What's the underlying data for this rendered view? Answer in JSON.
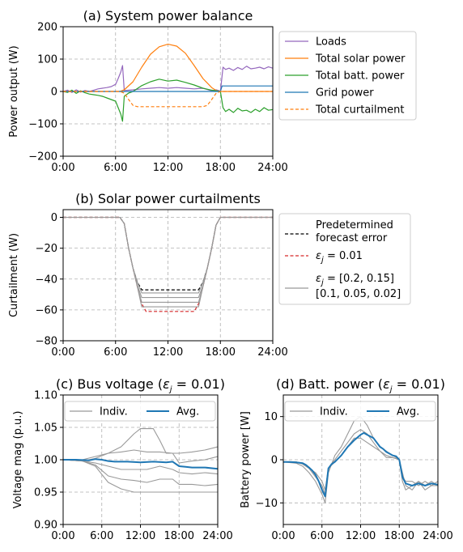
{
  "chart_data": [
    {
      "type": "line",
      "title": "(a) System power balance",
      "xlabel": "",
      "ylabel": "Power output (W)",
      "xlim": [
        0,
        24
      ],
      "ylim": [
        -200,
        200
      ],
      "xticks": [
        "0:00",
        "6:00",
        "12:00",
        "18:00",
        "24:00"
      ],
      "yticks": [
        "200",
        "100",
        "0",
        "−100",
        "−200"
      ],
      "grid": true,
      "legend": "outside-right",
      "series": [
        {
          "name": "Loads",
          "color": "#9467bd",
          "dashed": false,
          "x": [
            0,
            0.5,
            1,
            1.5,
            2,
            2.5,
            3,
            3.5,
            4,
            4.5,
            5,
            5.5,
            6,
            6.3,
            6.6,
            6.8,
            7,
            8,
            9,
            10,
            11,
            12,
            13,
            14,
            15,
            16,
            17,
            17.5,
            17.8,
            18,
            18.3,
            18.6,
            19,
            19.5,
            20,
            20.5,
            21,
            21.5,
            22,
            22.5,
            23,
            23.5,
            24
          ],
          "y": [
            0,
            4,
            -3,
            5,
            -2,
            3,
            0,
            4,
            8,
            10,
            12,
            15,
            22,
            40,
            60,
            80,
            3,
            5,
            8,
            10,
            12,
            10,
            12,
            10,
            8,
            10,
            2,
            5,
            3,
            0,
            75,
            68,
            72,
            65,
            74,
            68,
            78,
            70,
            72,
            75,
            70,
            76,
            72
          ]
        },
        {
          "name": "Total solar power",
          "color": "#ff7f0e",
          "dashed": false,
          "x": [
            0,
            6,
            6.5,
            7,
            8,
            9,
            10,
            11,
            12,
            13,
            14,
            15,
            16,
            17,
            17.5,
            18,
            24
          ],
          "y": [
            0,
            0,
            0,
            5,
            30,
            75,
            115,
            138,
            146,
            140,
            118,
            80,
            40,
            12,
            3,
            0,
            0
          ]
        },
        {
          "name": "Total batt. power",
          "color": "#2ca02c",
          "dashed": false,
          "x": [
            0,
            0.5,
            1,
            1.5,
            2,
            2.5,
            3,
            3.5,
            4,
            4.5,
            5,
            5.5,
            6,
            6.3,
            6.6,
            6.8,
            7,
            7.5,
            8,
            9,
            10,
            11,
            12,
            13,
            14,
            15,
            16,
            17,
            17.5,
            18,
            18.3,
            18.6,
            19,
            19.5,
            20,
            20.5,
            21,
            21.5,
            22,
            22.5,
            23,
            23.5,
            24
          ],
          "y": [
            0,
            -3,
            4,
            -6,
            2,
            -4,
            -8,
            -10,
            -12,
            -15,
            -20,
            -25,
            -30,
            -50,
            -70,
            -92,
            -15,
            -5,
            0,
            18,
            30,
            38,
            32,
            35,
            28,
            20,
            10,
            4,
            2,
            0,
            -50,
            -62,
            -55,
            -65,
            -52,
            -60,
            -58,
            -65,
            -55,
            -62,
            -50,
            -58,
            -56
          ]
        },
        {
          "name": "Grid power",
          "color": "#1f77b4",
          "dashed": false,
          "x": [
            0,
            18,
            18.2,
            24
          ],
          "y": [
            0,
            0,
            17,
            17
          ]
        },
        {
          "name": "Total curtailment",
          "color": "#ff7f0e",
          "dashed": true,
          "x": [
            0,
            6.5,
            7,
            7.5,
            8,
            8.5,
            16,
            16.5,
            17,
            17.5,
            18,
            24
          ],
          "y": [
            0,
            0,
            -5,
            -25,
            -43,
            -47,
            -47,
            -43,
            -25,
            -6,
            0,
            0
          ]
        }
      ]
    },
    {
      "type": "line",
      "title": "(b) Solar power curtailments",
      "xlabel": "",
      "ylabel": "Curtailment (W)",
      "xlim": [
        0,
        24
      ],
      "ylim": [
        -80,
        5
      ],
      "xticks": [
        "0:00",
        "6:00",
        "12:00",
        "18:00",
        "24:00"
      ],
      "yticks": [
        "0",
        "−20",
        "−40",
        "−60",
        "−80"
      ],
      "grid": true,
      "legend": "outside-right",
      "series": [
        {
          "name": "Predetermined\n forecast error",
          "color": "#000000",
          "dashed": true,
          "x": [
            0,
            6.5,
            7,
            7.5,
            8,
            8.5,
            9,
            15.5,
            16,
            16.5,
            17,
            17.5,
            18,
            24
          ],
          "y": [
            0,
            0,
            -4,
            -20,
            -33,
            -42,
            -47,
            -47,
            -42,
            -33,
            -20,
            -5,
            0,
            0
          ]
        },
        {
          "name": "$\\epsilon_j = 0.01$",
          "color": "#d62728",
          "dashed": true,
          "x": [
            0,
            6.5,
            7,
            7.5,
            8,
            8.5,
            9,
            9.5,
            15,
            15.5,
            16,
            16.5,
            17,
            17.5,
            18,
            24
          ],
          "y": [
            0,
            0,
            -4,
            -20,
            -33,
            -45,
            -56,
            -61,
            -61,
            -56,
            -45,
            -33,
            -20,
            -5,
            0,
            0
          ]
        },
        {
          "name": "$\\epsilon_j = [0.2, 0.15]$\n[0.1, 0.05, 0.02]",
          "color": "#999999",
          "dashed": false,
          "x": [
            0,
            6.5,
            7,
            7.5,
            8,
            8.5,
            9,
            15.5,
            16,
            16.5,
            17,
            17.5,
            18,
            24
          ],
          "y": [
            0,
            0,
            -4,
            -20,
            -33,
            -42,
            -49,
            -49,
            -42,
            -33,
            -20,
            -5,
            0,
            0
          ]
        },
        {
          "name": "",
          "color": "#999999",
          "dashed": false,
          "x": [
            0,
            6.5,
            7,
            7.5,
            8,
            8.5,
            9,
            15.5,
            16,
            16.5,
            17,
            17.5,
            18,
            24
          ],
          "y": [
            0,
            0,
            -4,
            -20,
            -33,
            -44,
            -52,
            -52,
            -44,
            -33,
            -20,
            -5,
            0,
            0
          ]
        },
        {
          "name": "",
          "color": "#999999",
          "dashed": false,
          "x": [
            0,
            6.5,
            7,
            7.5,
            8,
            8.5,
            9,
            15.5,
            16,
            16.5,
            17,
            17.5,
            18,
            24
          ],
          "y": [
            0,
            0,
            -4,
            -20,
            -33,
            -45,
            -55,
            -55,
            -45,
            -33,
            -20,
            -5,
            0,
            0
          ]
        },
        {
          "name": "",
          "color": "#999999",
          "dashed": false,
          "x": [
            0,
            6.5,
            7,
            7.5,
            8,
            8.5,
            9,
            15.5,
            16,
            16.5,
            17,
            17.5,
            18,
            24
          ],
          "y": [
            0,
            0,
            -4,
            -20,
            -33,
            -45,
            -58,
            -58,
            -45,
            -33,
            -20,
            -5,
            0,
            0
          ]
        }
      ]
    },
    {
      "type": "line",
      "title": "(c) Bus voltage ($\\epsilon_j = 0.01$)",
      "xlabel": "",
      "ylabel": "Voltage mag (p.u.)",
      "xlim": [
        0,
        24
      ],
      "ylim": [
        0.9,
        1.1
      ],
      "xticks": [
        "0:00",
        "6:00",
        "12:00",
        "18:00",
        "24:00"
      ],
      "yticks": [
        "1.10",
        "1.05",
        "1.00",
        "0.95",
        "0.90"
      ],
      "grid": true,
      "legend": "top",
      "series": [
        {
          "name": "Indiv.",
          "color": "#999999",
          "dashed": false,
          "x": [
            0,
            3,
            5,
            7,
            9,
            11,
            12,
            14,
            15,
            16,
            18,
            20,
            22,
            24
          ],
          "y": [
            1.0,
            1.0,
            1.005,
            1.01,
            1.02,
            1.04,
            1.048,
            1.048,
            1.03,
            1.01,
            1.01,
            1.012,
            1.015,
            1.02
          ]
        },
        {
          "name": "",
          "color": "#999999",
          "dashed": false,
          "x": [
            0,
            3,
            5,
            7,
            9,
            11,
            13,
            15,
            17,
            18,
            20,
            22,
            24
          ],
          "y": [
            1.0,
            0.998,
            1.002,
            1.01,
            1.012,
            1.015,
            1.012,
            1.012,
            1.01,
            0.995,
            0.998,
            1.0,
            1.005
          ]
        },
        {
          "name": "",
          "color": "#999999",
          "dashed": false,
          "x": [
            0,
            3,
            5,
            7,
            9,
            11,
            13,
            15,
            17,
            18,
            20,
            22,
            24
          ],
          "y": [
            1.0,
            0.998,
            0.995,
            0.99,
            0.985,
            0.985,
            0.985,
            0.99,
            0.985,
            0.98,
            0.978,
            0.98,
            0.978
          ]
        },
        {
          "name": "",
          "color": "#999999",
          "dashed": false,
          "x": [
            0,
            3,
            5,
            7,
            9,
            11,
            13,
            15,
            17,
            18,
            20,
            22,
            24
          ],
          "y": [
            1.0,
            0.998,
            0.992,
            0.975,
            0.97,
            0.968,
            0.965,
            0.97,
            0.97,
            0.962,
            0.962,
            0.96,
            0.962
          ]
        },
        {
          "name": "",
          "color": "#999999",
          "dashed": false,
          "x": [
            0,
            3,
            5,
            7,
            9,
            11,
            13,
            15,
            17,
            18,
            20,
            22,
            24
          ],
          "y": [
            1.0,
            0.998,
            0.99,
            0.965,
            0.955,
            0.95,
            0.95,
            0.95,
            0.95,
            0.95,
            0.95,
            0.95,
            0.95
          ]
        },
        {
          "name": "Avg.",
          "color": "#1f77b4",
          "dashed": false,
          "x": [
            0,
            2,
            4,
            5,
            6,
            7,
            8,
            10,
            12,
            14,
            16,
            17,
            18,
            19,
            20,
            22,
            24
          ],
          "y": [
            1.0,
            1.0,
            0.999,
            1.001,
            1.0,
            0.998,
            0.997,
            0.997,
            0.996,
            0.997,
            0.996,
            0.997,
            0.99,
            0.989,
            0.988,
            0.988,
            0.986
          ]
        }
      ]
    },
    {
      "type": "line",
      "title": "(d) Batt. power ($\\epsilon_j = 0.01$)",
      "xlabel": "",
      "ylabel": "Battery power [W]",
      "xlim": [
        0,
        24
      ],
      "ylim": [
        -15,
        15
      ],
      "xticks": [
        "0:00",
        "6:00",
        "12:00",
        "18:00",
        "24:00"
      ],
      "yticks": [
        "10",
        "0",
        "−10"
      ],
      "grid": true,
      "legend": "top",
      "series": [
        {
          "name": "Indiv.",
          "color": "#999999",
          "dashed": false,
          "x": [
            0,
            2,
            3,
            4,
            5,
            6,
            6.5,
            7,
            8,
            9,
            10,
            11,
            12,
            13,
            14,
            15,
            16,
            17,
            18,
            18.5,
            19,
            20,
            21,
            22,
            23,
            24
          ],
          "y": [
            -0.5,
            -0.8,
            -1.5,
            -3,
            -5,
            -8,
            -10,
            -3,
            1,
            3,
            6,
            9,
            10,
            8,
            5,
            3,
            2,
            1,
            0,
            -5,
            -7,
            -6,
            -5,
            -7,
            -6,
            -6
          ]
        },
        {
          "name": "",
          "color": "#999999",
          "dashed": false,
          "x": [
            0,
            2,
            3,
            4,
            5,
            6,
            6.5,
            7,
            8,
            9,
            10,
            11,
            12,
            13,
            14,
            15,
            16,
            17,
            18,
            18.5,
            19,
            20,
            21,
            22,
            23,
            24
          ],
          "y": [
            -0.5,
            -0.5,
            -1,
            -2,
            -4,
            -6,
            -8,
            -2,
            0,
            2,
            4,
            6,
            7,
            6,
            4,
            2,
            1,
            0.5,
            0,
            -4,
            -5,
            -5,
            -6,
            -5,
            -6,
            -5
          ]
        },
        {
          "name": "",
          "color": "#999999",
          "dashed": false,
          "x": [
            0,
            2,
            3,
            4,
            5,
            6,
            6.5,
            7,
            8,
            9,
            10,
            11,
            12,
            13,
            14,
            15,
            16,
            17,
            18,
            18.5,
            19,
            20,
            21,
            22,
            23,
            24
          ],
          "y": [
            -0.5,
            -0.5,
            -1,
            -2,
            -3,
            -5,
            -7,
            -2,
            -0.5,
            1,
            3,
            5,
            5,
            4,
            3,
            2,
            0.5,
            0.5,
            0,
            -3,
            -6,
            -7,
            -5,
            -6,
            -5,
            -6
          ]
        },
        {
          "name": "Avg.",
          "color": "#1f77b4",
          "dashed": false,
          "x": [
            0,
            1,
            2,
            3,
            3.5,
            4,
            4.5,
            5,
            5.5,
            6,
            6.5,
            7,
            7.5,
            8,
            9,
            10,
            11,
            12,
            12.5,
            13,
            14,
            15,
            15.5,
            16,
            17,
            17.5,
            18,
            18.5,
            19,
            20,
            21,
            22,
            23,
            24
          ],
          "y": [
            -0.5,
            -0.5,
            -0.6,
            -0.8,
            -1.2,
            -1.8,
            -2.5,
            -3.5,
            -5,
            -7,
            -8.5,
            -2,
            -1,
            -0.5,
            1,
            3,
            4.5,
            5.8,
            6.2,
            5.8,
            5,
            3,
            2.5,
            1.8,
            1,
            0.8,
            0,
            -4,
            -5.5,
            -6,
            -5.5,
            -6,
            -5.5,
            -5.8
          ]
        }
      ]
    }
  ]
}
